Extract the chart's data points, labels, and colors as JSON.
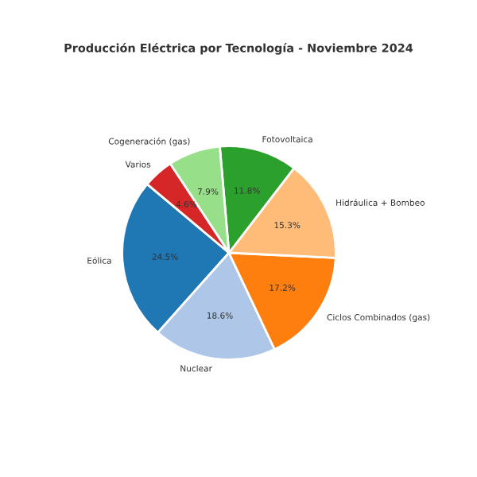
{
  "chart_data": {
    "type": "pie",
    "title": "Producción Eléctrica por Tecnología - Noviembre 2024",
    "categories": [
      "Eólica",
      "Nuclear",
      "Ciclos Combinados (gas)",
      "Hidráulica + Bombeo",
      "Fotovoltaica",
      "Cogeneración (gas)",
      "Varios"
    ],
    "values": [
      24.5,
      18.6,
      17.2,
      15.3,
      11.8,
      7.9,
      4.6
    ],
    "colors": [
      "#1f77b4",
      "#aec7e8",
      "#ff7f0e",
      "#ffbb78",
      "#2ca02c",
      "#98df8a",
      "#d62728"
    ],
    "value_labels": [
      "24.5%",
      "18.6%",
      "17.2%",
      "15.3%",
      "11.8%",
      "7.9%",
      "4.6%"
    ]
  }
}
